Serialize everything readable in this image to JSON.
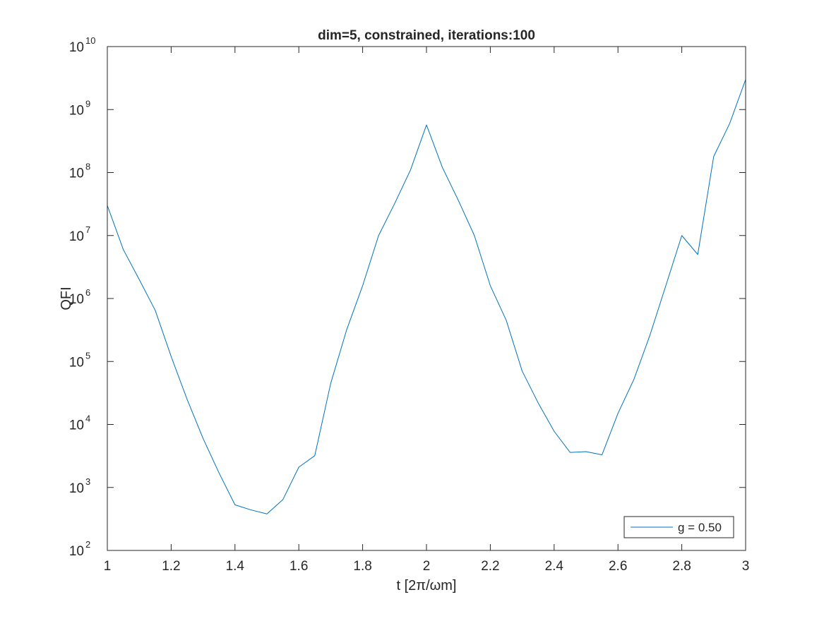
{
  "chart_data": {
    "type": "line",
    "title": "dim=5, constrained, iterations:100",
    "xlabel": "t [2π/ωm]",
    "ylabel": "QFI",
    "xlim": [
      1,
      3
    ],
    "ylim": [
      100,
      10000000000
    ],
    "yscale": "log",
    "grid": false,
    "legend_position": "bottom-right",
    "x_ticks": [
      "1",
      "1.2",
      "1.4",
      "1.6",
      "1.8",
      "2",
      "2.2",
      "2.4",
      "2.6",
      "2.8",
      "3"
    ],
    "y_ticks": [
      {
        "base": "10",
        "exp": "2"
      },
      {
        "base": "10",
        "exp": "3"
      },
      {
        "base": "10",
        "exp": "4"
      },
      {
        "base": "10",
        "exp": "5"
      },
      {
        "base": "10",
        "exp": "6"
      },
      {
        "base": "10",
        "exp": "7"
      },
      {
        "base": "10",
        "exp": "8"
      },
      {
        "base": "10",
        "exp": "9"
      },
      {
        "base": "10",
        "exp": "10"
      }
    ],
    "series": [
      {
        "name": "g = 0.50",
        "color": "#0072BD",
        "x": [
          1.0,
          1.05,
          1.1,
          1.15,
          1.2,
          1.25,
          1.3,
          1.35,
          1.4,
          1.45,
          1.5,
          1.55,
          1.6,
          1.65,
          1.7,
          1.75,
          1.8,
          1.85,
          1.9,
          1.95,
          2.0,
          2.05,
          2.1,
          2.15,
          2.2,
          2.25,
          2.3,
          2.35,
          2.4,
          2.45,
          2.5,
          2.55,
          2.6,
          2.65,
          2.7,
          2.75,
          2.8,
          2.85,
          2.9,
          2.95,
          3.0
        ],
        "y": [
          30000000,
          6000000,
          2000000,
          650000,
          120000,
          25000,
          6000,
          1700,
          530,
          440,
          380,
          640,
          2100,
          3200,
          45000,
          320000,
          1600000,
          10000000,
          32000000,
          110000000,
          570000000,
          120000000,
          36000000,
          10000000,
          1600000,
          450000,
          70000,
          22000,
          7800,
          3600,
          3700,
          3300,
          15000,
          52000,
          260000,
          1600000,
          10000000,
          5000000,
          180000000,
          600000000,
          3000000000
        ]
      }
    ]
  },
  "axis_color": "#262626",
  "box_color": "#262626"
}
